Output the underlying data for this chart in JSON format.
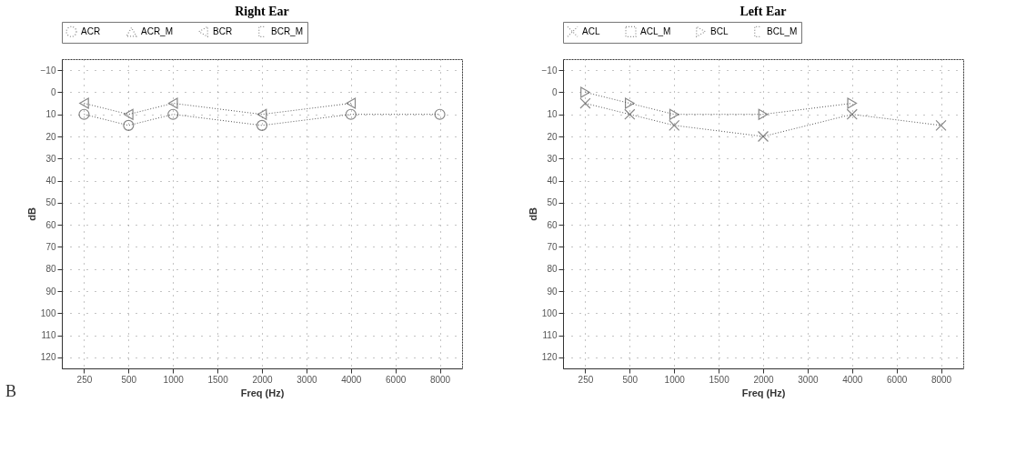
{
  "chart_data": [
    {
      "type": "line",
      "title": "Right Ear",
      "xlabel": "Freq (Hz)",
      "ylabel": "dB",
      "categories": [
        "250",
        "500",
        "1000",
        "1500",
        "2000",
        "3000",
        "4000",
        "6000",
        "8000"
      ],
      "series": [
        {
          "name": "ACR",
          "color": "#555555",
          "marker": "circle",
          "values": [
            10,
            15,
            10,
            null,
            15,
            null,
            10,
            null,
            10
          ]
        },
        {
          "name": "ACR_M",
          "color": "#555555",
          "marker": "triangle",
          "values": [
            null,
            null,
            null,
            null,
            null,
            null,
            null,
            null,
            null
          ]
        },
        {
          "name": "BCR",
          "color": "#555555",
          "marker": "triangle",
          "values": [
            5,
            10,
            5,
            null,
            10,
            null,
            5,
            null,
            null
          ]
        },
        {
          "name": "BCR_M",
          "color": "#555555",
          "values": [
            null,
            null,
            null,
            null,
            null,
            null,
            null,
            null,
            null
          ]
        }
      ],
      "ylim": [
        125,
        -15
      ],
      "yticks": [
        -10,
        0,
        10,
        20,
        30,
        40,
        50,
        60,
        70,
        80,
        90,
        100,
        110,
        120
      ],
      "grid": true,
      "legend": "top",
      "line_style": "dotted",
      "annotations": [
        "B"
      ]
    },
    {
      "type": "line",
      "title": "Left Ear",
      "xlabel": "Freq (Hz)",
      "ylabel": "dB",
      "categories": [
        "250",
        "500",
        "1000",
        "1500",
        "2000",
        "3000",
        "4000",
        "6000",
        "8000"
      ],
      "series": [
        {
          "name": "ACL",
          "color": "#555555",
          "marker": "cross",
          "values": [
            5,
            10,
            15,
            null,
            20,
            null,
            10,
            null,
            15
          ]
        },
        {
          "name": "ACL_M",
          "color": "#555555",
          "marker": "square",
          "values": [
            null,
            null,
            null,
            null,
            null,
            null,
            null,
            null,
            null
          ]
        },
        {
          "name": "BCL",
          "color": "#555555",
          "marker": "triangle",
          "values": [
            0,
            5,
            10,
            null,
            10,
            null,
            5,
            null,
            null
          ]
        },
        {
          "name": "BCL_M",
          "color": "#555555",
          "values": [
            null,
            null,
            null,
            null,
            null,
            null,
            null,
            null,
            null
          ]
        }
      ],
      "ylim": [
        125,
        -15
      ],
      "yticks": [
        -10,
        0,
        10,
        20,
        30,
        40,
        50,
        60,
        70,
        80,
        90,
        100,
        110,
        120
      ],
      "grid": true,
      "legend": "top",
      "line_style": "dotted"
    }
  ]
}
